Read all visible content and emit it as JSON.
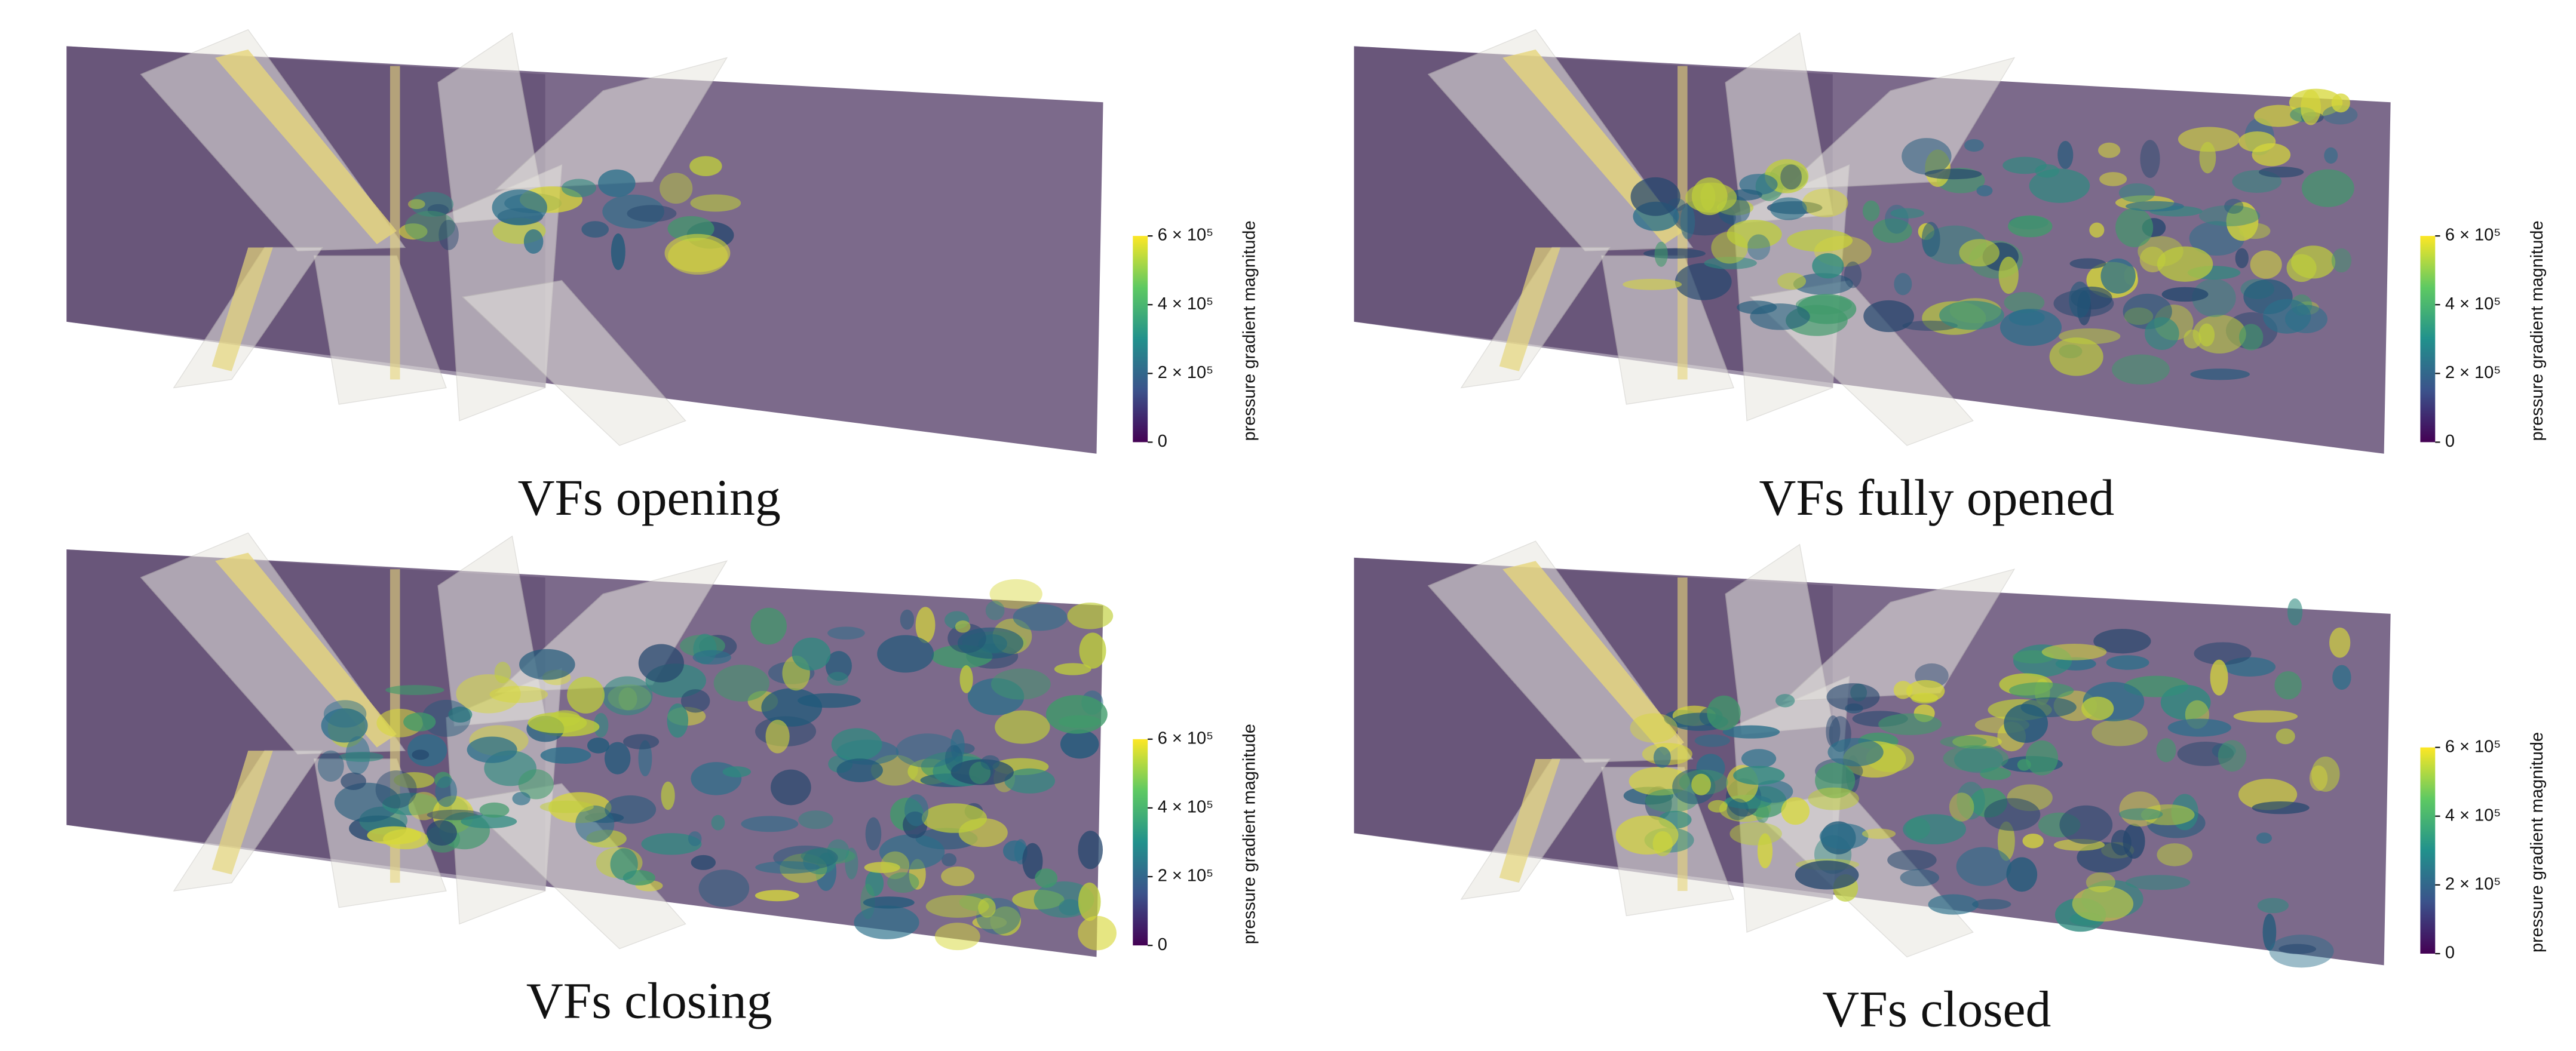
{
  "panels": [
    {
      "caption": "VFs opening",
      "colorbar": {
        "label": "pressure gradient magnitude",
        "lim": [
          0,
          600000
        ],
        "ticks": [
          0,
          {
            "value": 200000,
            "label": "2 × 10⁵"
          },
          {
            "value": 400000,
            "label": "4 × 10⁵"
          },
          {
            "value": 600000,
            "label": "6 × 10⁵"
          }
        ]
      }
    },
    {
      "caption": "VFs fully opened",
      "colorbar": {
        "label": "pressure gradient magnitude",
        "lim": [
          0,
          600000
        ],
        "ticks": [
          0,
          {
            "value": 200000,
            "label": "2 × 10⁵"
          },
          {
            "value": 400000,
            "label": "4 × 10⁵"
          },
          {
            "value": 600000,
            "label": "6 × 10⁵"
          }
        ]
      }
    },
    {
      "caption": "VFs closing",
      "colorbar": {
        "label": "pressure gradient magnitude",
        "lim": [
          0,
          600000
        ],
        "ticks": [
          0,
          {
            "value": 200000,
            "label": "2 × 10⁵"
          },
          {
            "value": 400000,
            "label": "4 × 10⁵"
          },
          {
            "value": 600000,
            "label": "6 × 10⁵"
          }
        ]
      }
    },
    {
      "caption": "VFs closed",
      "colorbar": {
        "label": "pressure gradient magnitude",
        "lim": [
          0,
          600000
        ],
        "ticks": [
          0,
          {
            "value": 200000,
            "label": "2 × 10⁵"
          },
          {
            "value": 400000,
            "label": "4 × 10⁵"
          },
          {
            "value": 600000,
            "label": "6 × 10⁵"
          }
        ]
      }
    }
  ]
}
